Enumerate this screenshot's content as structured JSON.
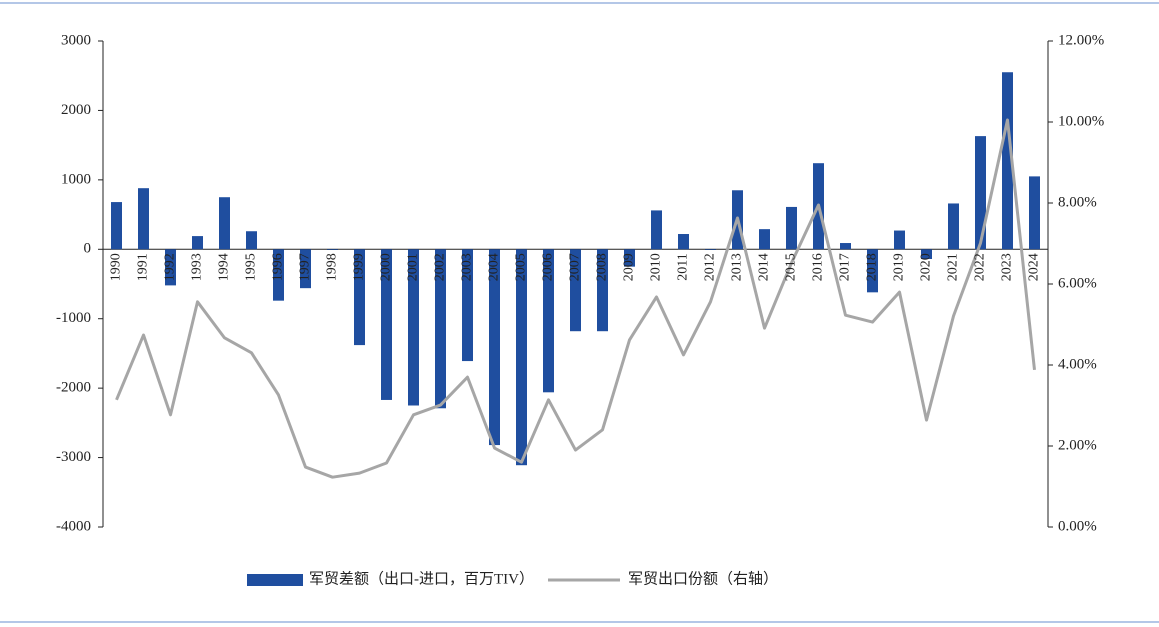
{
  "chart_data": {
    "type": "bar",
    "categories": [
      "1990",
      "1991",
      "1992",
      "1993",
      "1994",
      "1995",
      "1996",
      "1997",
      "1998",
      "1999",
      "2000",
      "2001",
      "2002",
      "2003",
      "2004",
      "2005",
      "2006",
      "2007",
      "2008",
      "2009",
      "2010",
      "2011",
      "2012",
      "2013",
      "2014",
      "2015",
      "2016",
      "2017",
      "2018",
      "2019",
      "2020",
      "2021",
      "2022",
      "2023",
      "2024"
    ],
    "series": [
      {
        "name": "军贸差额（出口-进口，百万TIV）",
        "type": "bar",
        "color": "#1f4e9f",
        "values": [
          680,
          880,
          -520,
          190,
          750,
          260,
          -740,
          -560,
          -10,
          -1380,
          -2170,
          -2250,
          -2290,
          -1610,
          -2820,
          -3110,
          -2060,
          -1180,
          -1180,
          -250,
          560,
          220,
          -10,
          850,
          290,
          610,
          1240,
          90,
          -620,
          270,
          -140,
          660,
          1630,
          2550,
          1050
        ]
      },
      {
        "name": "军贸出口份额（右轴）",
        "type": "line",
        "axis": "y2",
        "color": "#a6a6a6",
        "values": [
          3.14,
          4.74,
          2.77,
          5.56,
          4.67,
          4.3,
          3.26,
          1.48,
          1.23,
          1.33,
          1.58,
          2.77,
          3.01,
          3.7,
          1.95,
          1.6,
          3.14,
          1.9,
          2.4,
          4.62,
          5.68,
          4.25,
          5.56,
          7.63,
          4.91,
          6.52,
          7.95,
          5.23,
          5.06,
          5.8,
          2.64,
          5.21,
          7.01,
          10.05,
          3.88
        ]
      }
    ],
    "ylim": [
      -4000,
      3000
    ],
    "yticks": [
      -4000,
      -3000,
      -2000,
      -1000,
      0,
      1000,
      2000,
      3000
    ],
    "y2lim": [
      0,
      12
    ],
    "y2ticks": [
      {
        "value": 0,
        "label": "0.00%"
      },
      {
        "value": 2,
        "label": "2.00%"
      },
      {
        "value": 4,
        "label": "4.00%"
      },
      {
        "value": 6,
        "label": "6.00%"
      },
      {
        "value": 8,
        "label": "8.00%"
      },
      {
        "value": 10,
        "label": "10.00%"
      },
      {
        "value": 12,
        "label": "12.00%"
      }
    ],
    "grid": false
  }
}
